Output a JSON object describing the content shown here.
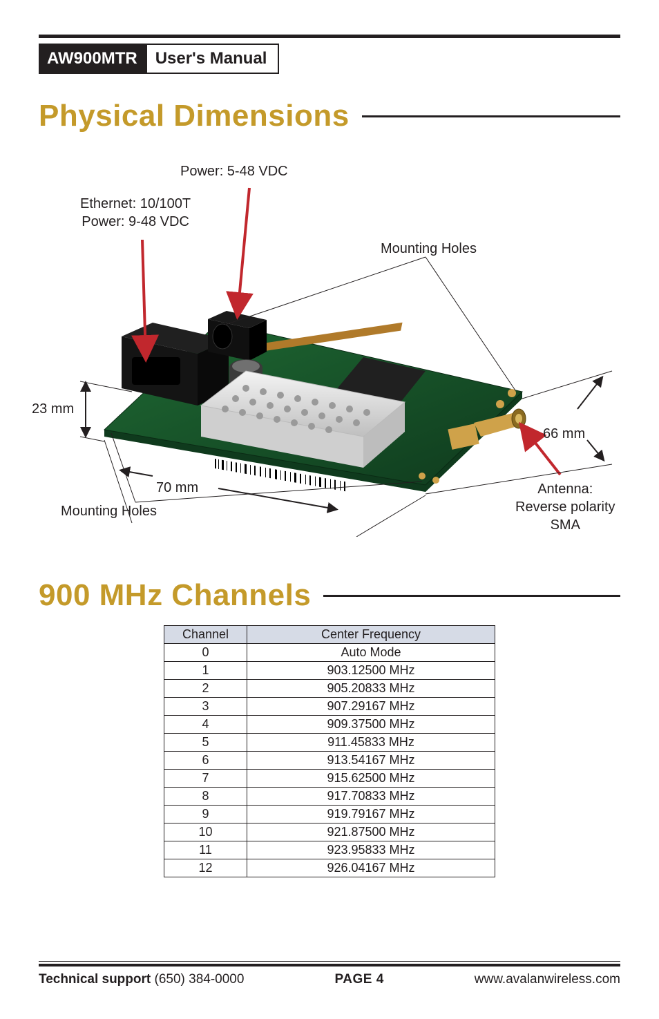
{
  "doc": {
    "model": "AW900MTR",
    "subtitle": "User's Manual"
  },
  "section1": {
    "title": "Physical Dimensions"
  },
  "diagram": {
    "labels": {
      "power_top": "Power: 5-48 VDC",
      "ethernet_line1": "Ethernet: 10/100T",
      "ethernet_line2": "Power: 9-48 VDC",
      "mounting_top": "Mounting Holes",
      "mounting_bottom": "Mounting Holes",
      "dim_height": "23 mm",
      "dim_width": "70 mm",
      "dim_depth": "66 mm",
      "antenna_line1": "Antenna:",
      "antenna_line2": "Reverse polarity",
      "antenna_line3": "SMA"
    },
    "colors": {
      "pcb": "#1f6a34",
      "pcb_dark": "#0f3a1d",
      "shield": "#f4f4f4",
      "shield_edge": "#bfbfbf",
      "rj_black": "#141414",
      "cap": "#3a3a3a",
      "gold": "#cfa24a",
      "copper_pad": "#b07a2a",
      "chip": "#202020",
      "arrow": "#c1272d",
      "line": "#231f20"
    }
  },
  "section2": {
    "title": "900 MHz Channels"
  },
  "channels": {
    "headers": {
      "ch": "Channel",
      "freq": "Center Frequency"
    },
    "rows": [
      {
        "ch": "0",
        "freq": "Auto Mode"
      },
      {
        "ch": "1",
        "freq": "903.12500 MHz"
      },
      {
        "ch": "2",
        "freq": "905.20833 MHz"
      },
      {
        "ch": "3",
        "freq": "907.29167 MHz"
      },
      {
        "ch": "4",
        "freq": "909.37500 MHz"
      },
      {
        "ch": "5",
        "freq": "911.45833 MHz"
      },
      {
        "ch": "6",
        "freq": "913.54167 MHz"
      },
      {
        "ch": "7",
        "freq": "915.62500 MHz"
      },
      {
        "ch": "8",
        "freq": "917.70833 MHz"
      },
      {
        "ch": "9",
        "freq": "919.79167 MHz"
      },
      {
        "ch": "10",
        "freq": "921.87500 MHz"
      },
      {
        "ch": "11",
        "freq": "923.95833 MHz"
      },
      {
        "ch": "12",
        "freq": "926.04167 MHz"
      }
    ],
    "style": {
      "header_bg": "#d6dbe6",
      "border": "#231f20",
      "fontsize": 18
    }
  },
  "footer": {
    "support_label": "Technical support",
    "support_phone": "(650) 384-0000",
    "page_label": "PAGE 4",
    "url": "www.avalanwireless.com"
  }
}
